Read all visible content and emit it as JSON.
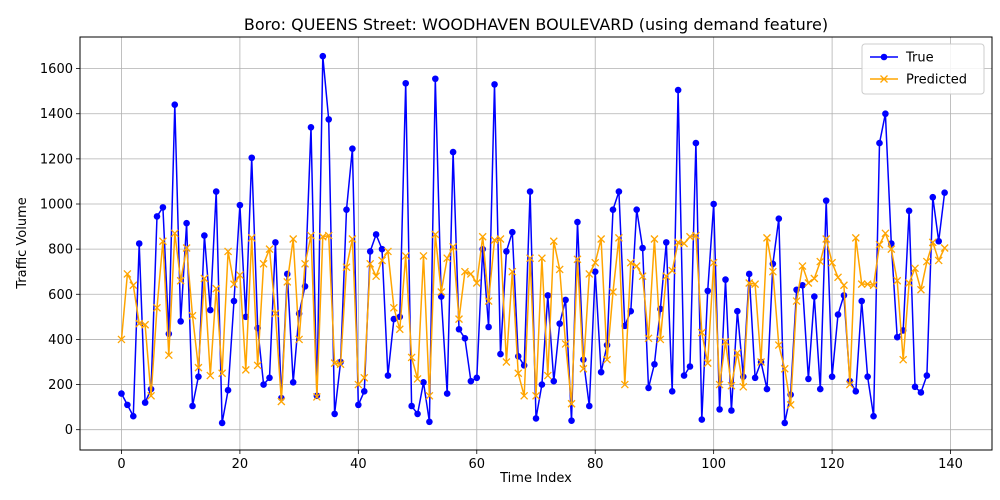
{
  "chart_data": {
    "type": "line",
    "title": "Boro: QUEENS Street: WOODHAVEN BOULEVARD (using demand feature)",
    "xlabel": "Time Index",
    "ylabel": "Traffic Volume",
    "xlim": [
      -7,
      147
    ],
    "ylim": [
      -90,
      1740
    ],
    "xticks": [
      0,
      20,
      40,
      60,
      80,
      100,
      120,
      140
    ],
    "yticks": [
      0,
      200,
      400,
      600,
      800,
      1000,
      1200,
      1400,
      1600
    ],
    "grid": true,
    "legend_position": "top-right",
    "colors": {
      "true": "#0000ff",
      "predicted": "#ffa500"
    },
    "series": [
      {
        "name": "True",
        "marker": "circle",
        "values": [
          160,
          110,
          60,
          825,
          120,
          180,
          945,
          985,
          425,
          1440,
          480,
          915,
          105,
          235,
          860,
          530,
          1055,
          30,
          175,
          570,
          995,
          500,
          1205,
          450,
          200,
          230,
          830,
          140,
          690,
          210,
          515,
          635,
          1340,
          150,
          1655,
          1375,
          70,
          300,
          975,
          1245,
          110,
          170,
          790,
          865,
          800,
          240,
          490,
          500,
          1535,
          105,
          70,
          210,
          35,
          1555,
          590,
          160,
          1230,
          445,
          405,
          215,
          230,
          800,
          455,
          1530,
          335,
          790,
          875,
          325,
          285,
          1055,
          50,
          200,
          595,
          215,
          470,
          575,
          40,
          920,
          310,
          105,
          700,
          255,
          375,
          975,
          1055,
          460,
          525,
          975,
          805,
          185,
          290,
          535,
          830,
          170,
          1505,
          240,
          280,
          1270,
          45,
          615,
          1000,
          90,
          665,
          85,
          525,
          235,
          690,
          230,
          300,
          180,
          735,
          935,
          30,
          155,
          620,
          640,
          225,
          590,
          180,
          1015,
          235,
          510,
          595,
          215,
          170,
          570,
          235,
          60,
          1270,
          1400,
          825,
          410,
          440,
          970,
          190,
          165,
          240,
          1030,
          835,
          1050
        ]
      },
      {
        "name": "Predicted",
        "marker": "x",
        "values": [
          400,
          690,
          640,
          470,
          465,
          150,
          540,
          835,
          330,
          870,
          660,
          805,
          505,
          275,
          670,
          240,
          625,
          250,
          790,
          645,
          685,
          265,
          850,
          285,
          735,
          800,
          515,
          125,
          655,
          845,
          400,
          735,
          860,
          145,
          855,
          860,
          295,
          290,
          720,
          845,
          200,
          230,
          735,
          680,
          750,
          790,
          540,
          445,
          770,
          320,
          225,
          770,
          150,
          865,
          610,
          760,
          810,
          490,
          700,
          690,
          650,
          855,
          570,
          840,
          845,
          300,
          700,
          250,
          150,
          760,
          150,
          760,
          240,
          835,
          710,
          380,
          115,
          755,
          270,
          690,
          740,
          845,
          310,
          610,
          850,
          200,
          740,
          725,
          680,
          405,
          845,
          400,
          680,
          705,
          830,
          825,
          855,
          860,
          430,
          295,
          740,
          200,
          390,
          195,
          340,
          190,
          650,
          645,
          300,
          850,
          700,
          375,
          270,
          110,
          570,
          725,
          650,
          670,
          745,
          845,
          740,
          675,
          640,
          200,
          850,
          645,
          645,
          640,
          820,
          870,
          800,
          660,
          310,
          650,
          715,
          620,
          745,
          830,
          750,
          805
        ]
      }
    ]
  }
}
